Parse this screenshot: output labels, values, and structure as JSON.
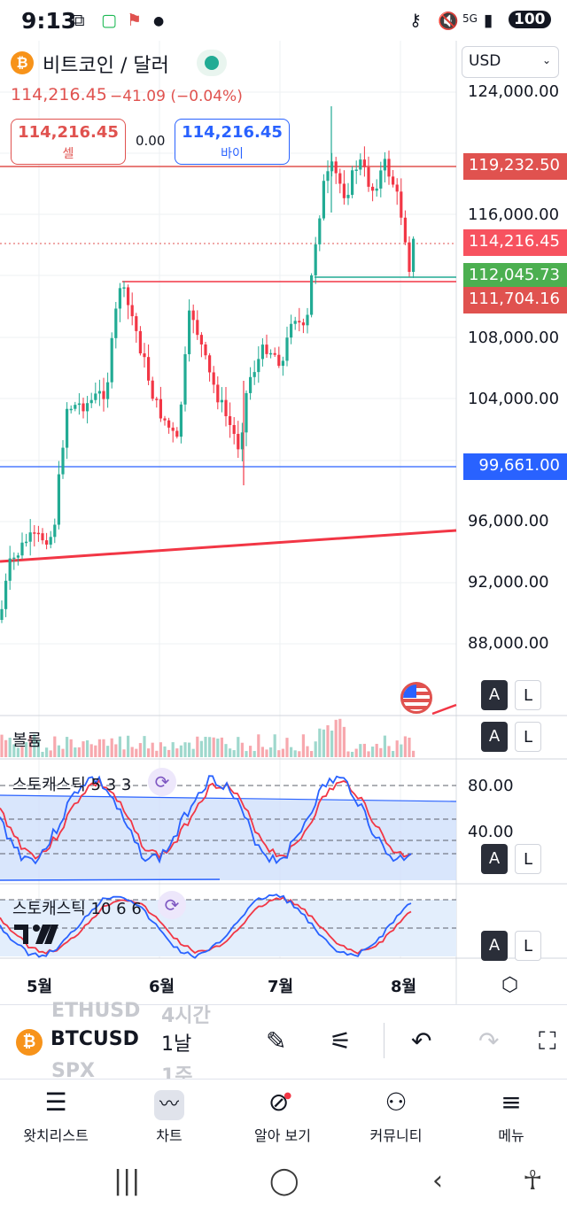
{
  "status_bar": {
    "time": "9:13",
    "battery": "100"
  },
  "header": {
    "symbol_icon": "bitcoin-icon",
    "title": "비트코인 / 달러",
    "last_price": "114,216.45",
    "change": "−41.09 (−0.04%)",
    "sell_price": "114,216.45",
    "sell_label": "셀",
    "spread": "0.00",
    "buy_price": "114,216.45",
    "buy_label": "바이",
    "currency": "USD"
  },
  "price_axis": {
    "labels": [
      "124,000.00",
      "116,000.00",
      "108,000.00",
      "104,000.00",
      "96,000.00",
      "92,000.00",
      "88,000.00"
    ],
    "markers": {
      "resistance": "119,232.50",
      "current": "114,216.45",
      "green_level": "112,045.73",
      "red_level": "111,704.16",
      "blue_level": "99,661.00"
    }
  },
  "panes": {
    "volume_title": "볼륨",
    "stoch1_title": "스토캐스틱 5 3 3",
    "stoch1_labels": [
      "80.00",
      "40.00"
    ],
    "stoch2_title": "스토캐스틱 10 6 6"
  },
  "auto_log": {
    "a": "A",
    "l": "L"
  },
  "time_axis": [
    "5월",
    "6월",
    "7월",
    "8월"
  ],
  "toolbar": {
    "symbol": "BTCUSD",
    "symbol_ghost_above": "ETHUSD",
    "symbol_ghost_below": "SPX",
    "interval": "1날",
    "interval_ghost_above": "4시간",
    "interval_ghost_below": "1주"
  },
  "bottom_nav": {
    "watchlist": "왓치리스트",
    "chart": "차트",
    "explore": "알아 보기",
    "community": "커뮤니티",
    "menu": "메뉴"
  },
  "colors": {
    "up": "#22ab94",
    "down": "#f23645",
    "accent": "#2962ff",
    "stoch_k": "#2962ff",
    "stoch_d": "#f23645"
  }
}
